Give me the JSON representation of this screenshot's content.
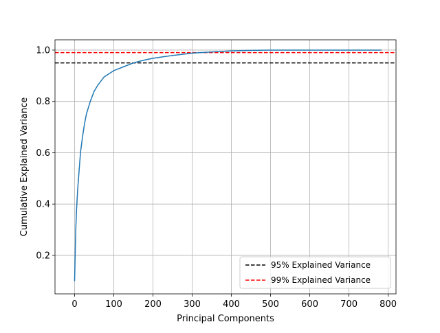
{
  "chart_data": {
    "type": "line",
    "xlabel": "Principal Components",
    "ylabel": "Cumulative Explained Variance",
    "xlim": [
      -50,
      820
    ],
    "ylim": [
      0.05,
      1.04
    ],
    "x_ticks": [
      0,
      100,
      200,
      300,
      400,
      500,
      600,
      700,
      800
    ],
    "y_ticks": [
      0.2,
      0.4,
      0.6,
      0.8,
      1.0
    ],
    "x_tick_labels": [
      "0",
      "100",
      "200",
      "300",
      "400",
      "500",
      "600",
      "700",
      "800"
    ],
    "y_tick_labels": [
      "0.2",
      "0.4",
      "0.6",
      "0.8",
      "1.0"
    ],
    "grid": true,
    "legend_position": "lower-right",
    "series": [
      {
        "color": "#1f77b4",
        "x": [
          0,
          1,
          2,
          3,
          5,
          8,
          10,
          15,
          20,
          25,
          30,
          40,
          50,
          60,
          75,
          100,
          125,
          150,
          175,
          200,
          250,
          300,
          350,
          400,
          450,
          500,
          600,
          700,
          783
        ],
        "y": [
          0.1,
          0.17,
          0.24,
          0.3,
          0.38,
          0.46,
          0.5,
          0.6,
          0.66,
          0.71,
          0.75,
          0.8,
          0.84,
          0.865,
          0.895,
          0.92,
          0.935,
          0.95,
          0.96,
          0.968,
          0.979,
          0.988,
          0.993,
          0.997,
          0.999,
          1.0,
          1.0,
          1.0,
          1.0
        ]
      }
    ],
    "reference_lines": [
      {
        "name": "95% Explained Variance",
        "y": 0.95,
        "color": "#000000",
        "style": "dashed"
      },
      {
        "name": "99% Explained Variance",
        "y": 0.99,
        "color": "#ff0000",
        "style": "dashed"
      }
    ]
  }
}
